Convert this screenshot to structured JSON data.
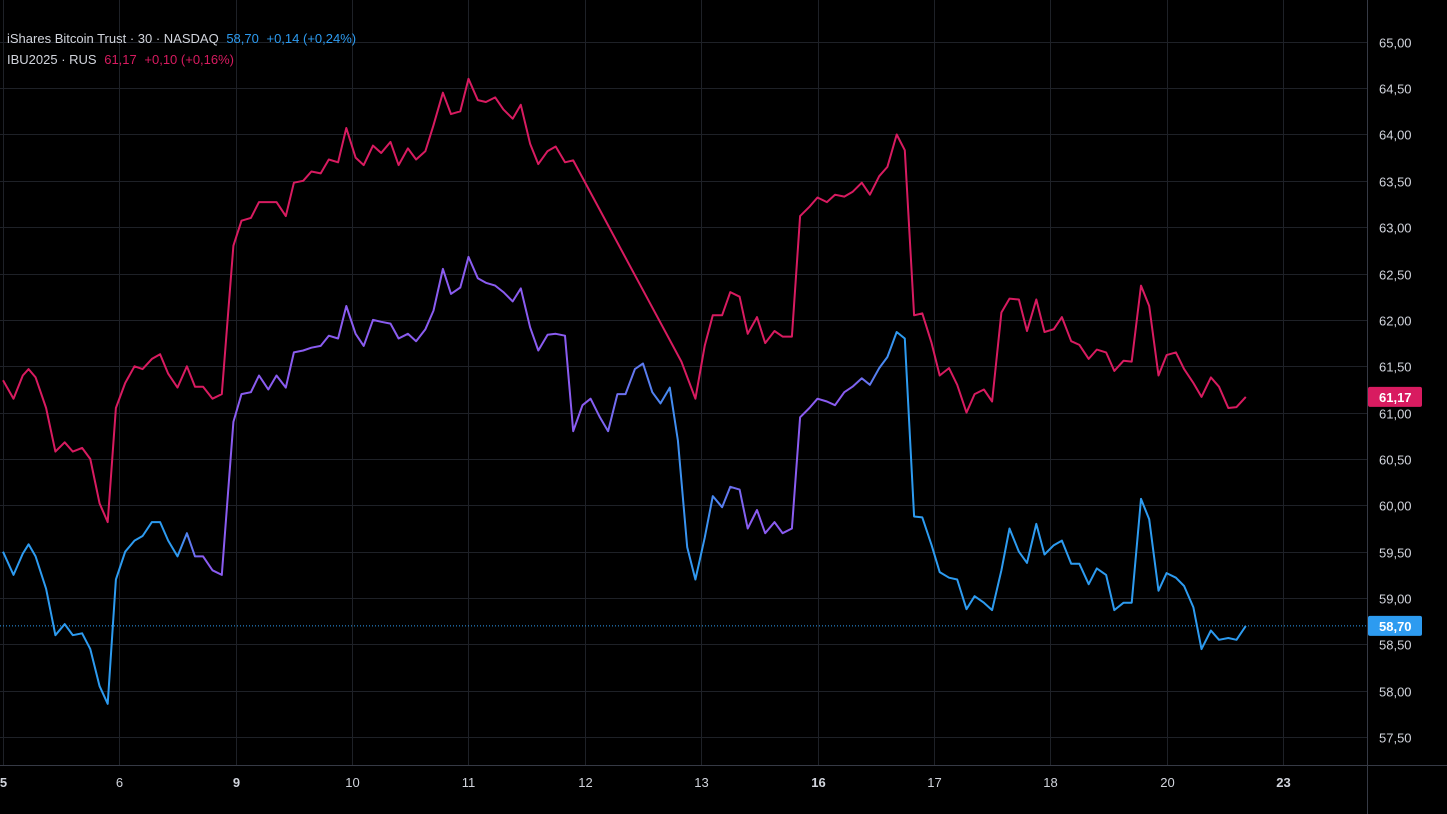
{
  "legend": {
    "series1": {
      "symbol": "iShares Bitcoin Trust · 30 · NASDAQ",
      "last": "58,70",
      "change": "+0,14 (+0,24%)",
      "color": "#2d9bf0"
    },
    "series2": {
      "symbol": "IBU2025 · RUS",
      "last": "61,17",
      "change": "+0,10 (+0,16%)",
      "color": "#d81b60"
    }
  },
  "colors": {
    "background": "#000000",
    "grid": "#1e2127",
    "text": "#d1d4dc",
    "axis_line": "#363a45",
    "overlap_line": "#8a5cf0"
  },
  "chart_data": {
    "type": "line",
    "ylim": [
      57.2,
      65.45
    ],
    "y_ticks": [
      "57,50",
      "58,00",
      "58,50",
      "59,00",
      "59,50",
      "60,00",
      "60,50",
      "61,00",
      "61,50",
      "62,00",
      "62,50",
      "63,00",
      "63,50",
      "64,00",
      "64,50",
      "65,00"
    ],
    "y_tick_values": [
      57.5,
      58.0,
      58.5,
      59.0,
      59.5,
      60.0,
      60.5,
      61.0,
      61.5,
      62.0,
      62.5,
      63.0,
      63.5,
      64.0,
      64.5,
      65.0
    ],
    "x_range": [
      5.0,
      25.6
    ],
    "x_ticks": [
      {
        "label": "5",
        "pos": 5.0,
        "bold": true
      },
      {
        "label": "6",
        "pos": 6.0,
        "bold": false
      },
      {
        "label": "9",
        "pos": 7.0,
        "bold": true
      },
      {
        "label": "10",
        "pos": 8.0,
        "bold": false
      },
      {
        "label": "11",
        "pos": 9.0,
        "bold": false
      },
      {
        "label": "12",
        "pos": 10.0,
        "bold": false
      },
      {
        "label": "13",
        "pos": 11.0,
        "bold": false
      },
      {
        "label": "16",
        "pos": 12.0,
        "bold": true
      },
      {
        "label": "17",
        "pos": 13.0,
        "bold": false
      },
      {
        "label": "18",
        "pos": 14.0,
        "bold": false
      },
      {
        "label": "20",
        "pos": 15.0,
        "bold": false
      },
      {
        "label": "23",
        "pos": 16.0,
        "bold": true
      }
    ],
    "series": [
      {
        "name": "iShares Bitcoin Trust · 30 · NASDAQ",
        "color": "#2d9bf0",
        "last_label": "58,70",
        "last_value": 58.7,
        "points": [
          [
            5.0,
            59.5
          ],
          [
            5.09,
            59.25
          ],
          [
            5.17,
            59.48
          ],
          [
            5.22,
            59.58
          ],
          [
            5.28,
            59.45
          ],
          [
            5.37,
            59.1
          ],
          [
            5.45,
            58.6
          ],
          [
            5.53,
            58.72
          ],
          [
            5.6,
            58.6
          ],
          [
            5.68,
            58.62
          ],
          [
            5.75,
            58.45
          ],
          [
            5.83,
            58.05
          ],
          [
            5.9,
            57.86
          ],
          [
            5.97,
            59.2
          ],
          [
            6.05,
            59.5
          ],
          [
            6.13,
            59.62
          ],
          [
            6.2,
            59.67
          ],
          [
            6.28,
            59.82
          ],
          [
            6.35,
            59.82
          ],
          [
            6.42,
            59.62
          ],
          [
            6.5,
            59.45
          ],
          [
            6.58,
            59.7
          ],
          [
            6.65,
            59.45
          ],
          [
            6.72,
            59.45
          ],
          [
            6.8,
            59.3
          ],
          [
            6.88,
            59.25
          ],
          [
            6.98,
            60.9
          ],
          [
            7.05,
            61.2
          ],
          [
            7.13,
            61.22
          ],
          [
            7.2,
            61.4
          ],
          [
            7.28,
            61.25
          ],
          [
            7.35,
            61.4
          ],
          [
            7.43,
            61.27
          ],
          [
            7.5,
            61.65
          ],
          [
            7.58,
            61.67
          ],
          [
            7.65,
            61.7
          ],
          [
            7.73,
            61.72
          ],
          [
            7.8,
            61.83
          ],
          [
            7.88,
            61.8
          ],
          [
            7.95,
            62.15
          ],
          [
            8.03,
            61.85
          ],
          [
            8.1,
            61.72
          ],
          [
            8.18,
            62.0
          ],
          [
            8.25,
            61.98
          ],
          [
            8.33,
            61.96
          ],
          [
            8.4,
            61.8
          ],
          [
            8.48,
            61.85
          ],
          [
            8.55,
            61.77
          ],
          [
            8.63,
            61.9
          ],
          [
            8.7,
            62.1
          ],
          [
            8.78,
            62.55
          ],
          [
            8.85,
            62.28
          ],
          [
            8.93,
            62.35
          ],
          [
            9.0,
            62.68
          ],
          [
            9.08,
            62.45
          ],
          [
            9.15,
            62.4
          ],
          [
            9.23,
            62.37
          ],
          [
            9.3,
            62.3
          ],
          [
            9.38,
            62.2
          ],
          [
            9.45,
            62.34
          ],
          [
            9.53,
            61.92
          ],
          [
            9.6,
            61.67
          ],
          [
            9.68,
            61.84
          ],
          [
            9.75,
            61.85
          ],
          [
            9.83,
            61.83
          ],
          [
            9.9,
            60.8
          ],
          [
            9.98,
            61.08
          ],
          [
            10.05,
            61.15
          ],
          [
            10.13,
            60.95
          ],
          [
            10.2,
            60.8
          ],
          [
            10.28,
            61.2
          ],
          [
            10.35,
            61.2
          ],
          [
            10.43,
            61.47
          ],
          [
            10.5,
            61.53
          ],
          [
            10.58,
            61.22
          ],
          [
            10.65,
            61.1
          ],
          [
            10.73,
            61.27
          ],
          [
            10.8,
            60.7
          ],
          [
            10.88,
            59.55
          ],
          [
            10.95,
            59.2
          ],
          [
            11.03,
            59.65
          ],
          [
            11.1,
            60.1
          ],
          [
            11.18,
            59.98
          ],
          [
            11.25,
            60.2
          ],
          [
            11.33,
            60.17
          ],
          [
            11.4,
            59.75
          ],
          [
            11.48,
            59.95
          ],
          [
            11.55,
            59.7
          ],
          [
            11.63,
            59.82
          ],
          [
            11.7,
            59.7
          ],
          [
            11.78,
            59.75
          ],
          [
            11.85,
            60.95
          ],
          [
            11.93,
            61.05
          ],
          [
            12.0,
            61.15
          ],
          [
            12.08,
            61.12
          ],
          [
            12.15,
            61.08
          ],
          [
            12.23,
            61.22
          ],
          [
            12.3,
            61.28
          ],
          [
            12.38,
            61.37
          ],
          [
            12.45,
            61.3
          ],
          [
            12.53,
            61.48
          ],
          [
            12.6,
            61.6
          ],
          [
            12.68,
            61.87
          ],
          [
            12.75,
            61.8
          ],
          [
            12.83,
            59.88
          ],
          [
            12.9,
            59.87
          ],
          [
            12.98,
            59.57
          ],
          [
            13.05,
            59.28
          ],
          [
            13.13,
            59.22
          ],
          [
            13.2,
            59.2
          ],
          [
            13.28,
            58.88
          ],
          [
            13.35,
            59.02
          ],
          [
            13.43,
            58.95
          ],
          [
            13.5,
            58.87
          ],
          [
            13.58,
            59.3
          ],
          [
            13.65,
            59.75
          ],
          [
            13.73,
            59.5
          ],
          [
            13.8,
            59.38
          ],
          [
            13.88,
            59.8
          ],
          [
            13.95,
            59.47
          ],
          [
            14.03,
            59.57
          ],
          [
            14.1,
            59.62
          ],
          [
            14.18,
            59.37
          ],
          [
            14.25,
            59.37
          ],
          [
            14.33,
            59.15
          ],
          [
            14.4,
            59.32
          ],
          [
            14.48,
            59.25
          ],
          [
            14.55,
            58.87
          ],
          [
            14.63,
            58.95
          ],
          [
            14.7,
            58.95
          ],
          [
            14.78,
            60.07
          ],
          [
            14.85,
            59.85
          ],
          [
            14.93,
            59.08
          ],
          [
            15.0,
            59.27
          ],
          [
            15.08,
            59.22
          ],
          [
            15.15,
            59.13
          ],
          [
            15.23,
            58.9
          ],
          [
            15.3,
            58.45
          ],
          [
            15.38,
            58.65
          ],
          [
            15.45,
            58.55
          ],
          [
            15.53,
            58.57
          ],
          [
            15.6,
            58.55
          ],
          [
            15.68,
            58.7
          ]
        ]
      },
      {
        "name": "IBU2025 · RUS",
        "color": "#d81b60",
        "last_label": "61,17",
        "last_value": 61.17,
        "points": [
          [
            5.0,
            61.35
          ],
          [
            5.09,
            61.15
          ],
          [
            5.17,
            61.4
          ],
          [
            5.22,
            61.47
          ],
          [
            5.28,
            61.38
          ],
          [
            5.37,
            61.05
          ],
          [
            5.45,
            60.58
          ],
          [
            5.53,
            60.68
          ],
          [
            5.6,
            60.58
          ],
          [
            5.68,
            60.62
          ],
          [
            5.75,
            60.5
          ],
          [
            5.83,
            60.02
          ],
          [
            5.9,
            59.82
          ],
          [
            5.97,
            61.05
          ],
          [
            6.05,
            61.32
          ],
          [
            6.13,
            61.5
          ],
          [
            6.2,
            61.47
          ],
          [
            6.28,
            61.58
          ],
          [
            6.35,
            61.63
          ],
          [
            6.42,
            61.42
          ],
          [
            6.5,
            61.27
          ],
          [
            6.58,
            61.5
          ],
          [
            6.65,
            61.28
          ],
          [
            6.72,
            61.28
          ],
          [
            6.8,
            61.15
          ],
          [
            6.88,
            61.2
          ],
          [
            6.98,
            62.8
          ],
          [
            7.05,
            63.07
          ],
          [
            7.13,
            63.1
          ],
          [
            7.2,
            63.27
          ],
          [
            7.28,
            63.27
          ],
          [
            7.35,
            63.27
          ],
          [
            7.43,
            63.12
          ],
          [
            7.5,
            63.48
          ],
          [
            7.58,
            63.5
          ],
          [
            7.65,
            63.6
          ],
          [
            7.73,
            63.58
          ],
          [
            7.8,
            63.73
          ],
          [
            7.88,
            63.7
          ],
          [
            7.95,
            64.07
          ],
          [
            8.03,
            63.75
          ],
          [
            8.1,
            63.67
          ],
          [
            8.18,
            63.88
          ],
          [
            8.25,
            63.8
          ],
          [
            8.33,
            63.92
          ],
          [
            8.4,
            63.67
          ],
          [
            8.48,
            63.85
          ],
          [
            8.55,
            63.73
          ],
          [
            8.63,
            63.82
          ],
          [
            8.7,
            64.1
          ],
          [
            8.78,
            64.45
          ],
          [
            8.85,
            64.22
          ],
          [
            8.93,
            64.25
          ],
          [
            9.0,
            64.6
          ],
          [
            9.08,
            64.37
          ],
          [
            9.15,
            64.35
          ],
          [
            9.23,
            64.4
          ],
          [
            9.3,
            64.27
          ],
          [
            9.38,
            64.17
          ],
          [
            9.45,
            64.32
          ],
          [
            9.53,
            63.9
          ],
          [
            9.6,
            63.68
          ],
          [
            9.68,
            63.82
          ],
          [
            9.75,
            63.87
          ],
          [
            9.83,
            63.7
          ],
          [
            9.9,
            63.72
          ],
          [
            10.83,
            61.55
          ],
          [
            10.95,
            61.15
          ],
          [
            11.03,
            61.72
          ],
          [
            11.1,
            62.05
          ],
          [
            11.18,
            62.05
          ],
          [
            11.25,
            62.3
          ],
          [
            11.33,
            62.25
          ],
          [
            11.4,
            61.85
          ],
          [
            11.48,
            62.03
          ],
          [
            11.55,
            61.75
          ],
          [
            11.63,
            61.88
          ],
          [
            11.7,
            61.82
          ],
          [
            11.78,
            61.82
          ],
          [
            11.85,
            63.12
          ],
          [
            11.93,
            63.22
          ],
          [
            12.0,
            63.32
          ],
          [
            12.08,
            63.27
          ],
          [
            12.15,
            63.35
          ],
          [
            12.23,
            63.33
          ],
          [
            12.3,
            63.38
          ],
          [
            12.38,
            63.48
          ],
          [
            12.45,
            63.35
          ],
          [
            12.53,
            63.55
          ],
          [
            12.6,
            63.65
          ],
          [
            12.68,
            64.0
          ],
          [
            12.75,
            63.83
          ],
          [
            12.83,
            62.05
          ],
          [
            12.9,
            62.07
          ],
          [
            12.98,
            61.75
          ],
          [
            13.05,
            61.4
          ],
          [
            13.13,
            61.48
          ],
          [
            13.2,
            61.3
          ],
          [
            13.28,
            61.0
          ],
          [
            13.35,
            61.2
          ],
          [
            13.43,
            61.25
          ],
          [
            13.5,
            61.12
          ],
          [
            13.58,
            62.08
          ],
          [
            13.65,
            62.23
          ],
          [
            13.73,
            62.22
          ],
          [
            13.8,
            61.88
          ],
          [
            13.88,
            62.22
          ],
          [
            13.95,
            61.87
          ],
          [
            14.03,
            61.9
          ],
          [
            14.1,
            62.03
          ],
          [
            14.18,
            61.77
          ],
          [
            14.25,
            61.73
          ],
          [
            14.33,
            61.58
          ],
          [
            14.4,
            61.68
          ],
          [
            14.48,
            61.65
          ],
          [
            14.55,
            61.45
          ],
          [
            14.63,
            61.56
          ],
          [
            14.7,
            61.55
          ],
          [
            14.78,
            62.37
          ],
          [
            14.85,
            62.15
          ],
          [
            14.93,
            61.4
          ],
          [
            15.0,
            61.62
          ],
          [
            15.08,
            61.65
          ],
          [
            15.15,
            61.47
          ],
          [
            15.23,
            61.32
          ],
          [
            15.3,
            61.17
          ],
          [
            15.38,
            61.38
          ],
          [
            15.45,
            61.28
          ],
          [
            15.53,
            61.05
          ],
          [
            15.6,
            61.06
          ],
          [
            15.68,
            61.17
          ]
        ]
      }
    ]
  }
}
